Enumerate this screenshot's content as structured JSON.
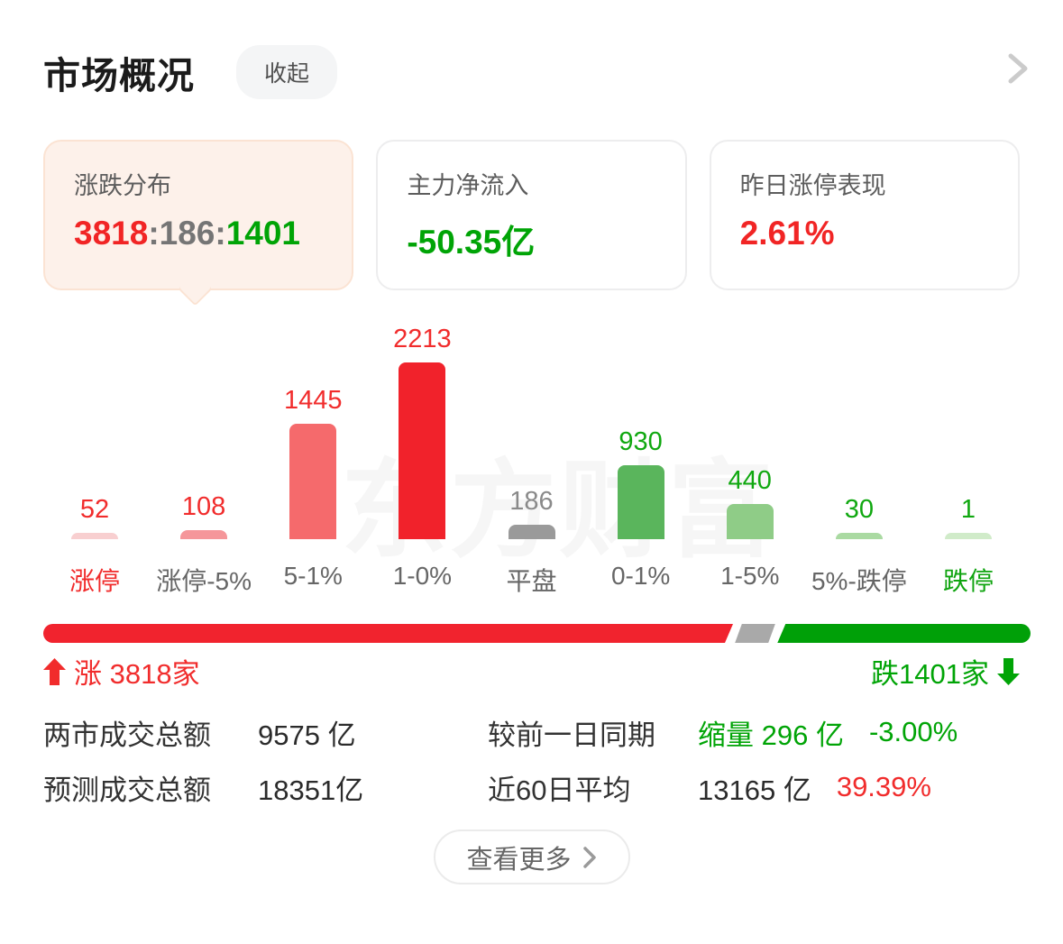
{
  "header": {
    "title": "市场概况",
    "collapse_label": "收起"
  },
  "cards": [
    {
      "label": "涨跌分布",
      "active": true,
      "value_parts": [
        {
          "text": "3818",
          "color": "#f12525"
        },
        {
          "text": ":",
          "color": "#757575"
        },
        {
          "text": "186",
          "color": "#757575"
        },
        {
          "text": ":",
          "color": "#757575"
        },
        {
          "text": "1401",
          "color": "#00a406"
        }
      ]
    },
    {
      "label": "主力净流入",
      "value": "-50.35亿",
      "color": "#00a406"
    },
    {
      "label": "昨日涨停表现",
      "value": "2.61%",
      "color": "#f12525"
    }
  ],
  "chart_data": {
    "type": "bar",
    "title": "涨跌分布",
    "categories": [
      "涨停",
      "涨停-5%",
      "5-1%",
      "1-0%",
      "平盘",
      "0-1%",
      "1-5%",
      "5%-跌停",
      "跌停"
    ],
    "values": [
      52,
      108,
      1445,
      2213,
      186,
      930,
      440,
      30,
      1
    ],
    "bar_colors": [
      "#f8cfd0",
      "#f5969a",
      "#f56a6c",
      "#f1222b",
      "#9a9a9a",
      "#5ab55c",
      "#8fcc87",
      "#aadaa2",
      "#d0ebc9"
    ],
    "value_label_colors": [
      "#f12c2c",
      "#f12c2c",
      "#f12c2c",
      "#f12c2c",
      "#8a8a8a",
      "#10a810",
      "#10a810",
      "#10a810",
      "#10a810"
    ],
    "category_colors": [
      "#f12c2c",
      "#666666",
      "#666666",
      "#666666",
      "#666666",
      "#666666",
      "#666666",
      "#666666",
      "#10a410"
    ],
    "ylim": [
      0,
      2213
    ],
    "grid": false,
    "watermark": "东方财富"
  },
  "ratio_bar": {
    "up": 3818,
    "flat": 186,
    "down": 1401,
    "up_color": "#f1232e",
    "flat_color": "#a9a9a9",
    "down_color": "#00a008"
  },
  "summary": {
    "up_label": "涨 3818家",
    "down_label": "跌1401家"
  },
  "stats": {
    "rows": [
      {
        "label": "两市成交总额",
        "value": "9575 亿",
        "label2": "较前一日同期",
        "value2": "缩量 296 亿",
        "value2_color": "#00a406",
        "value3": "-3.00%",
        "value3_color": "#00a406"
      },
      {
        "label": "预测成交总额",
        "value": "18351亿",
        "label2": "近60日平均",
        "value2": "13165 亿",
        "value2_color": "#2b2b2b",
        "value3": "39.39%",
        "value3_color": "#f12c2c"
      }
    ]
  },
  "footer": {
    "more_label": "查看更多"
  }
}
